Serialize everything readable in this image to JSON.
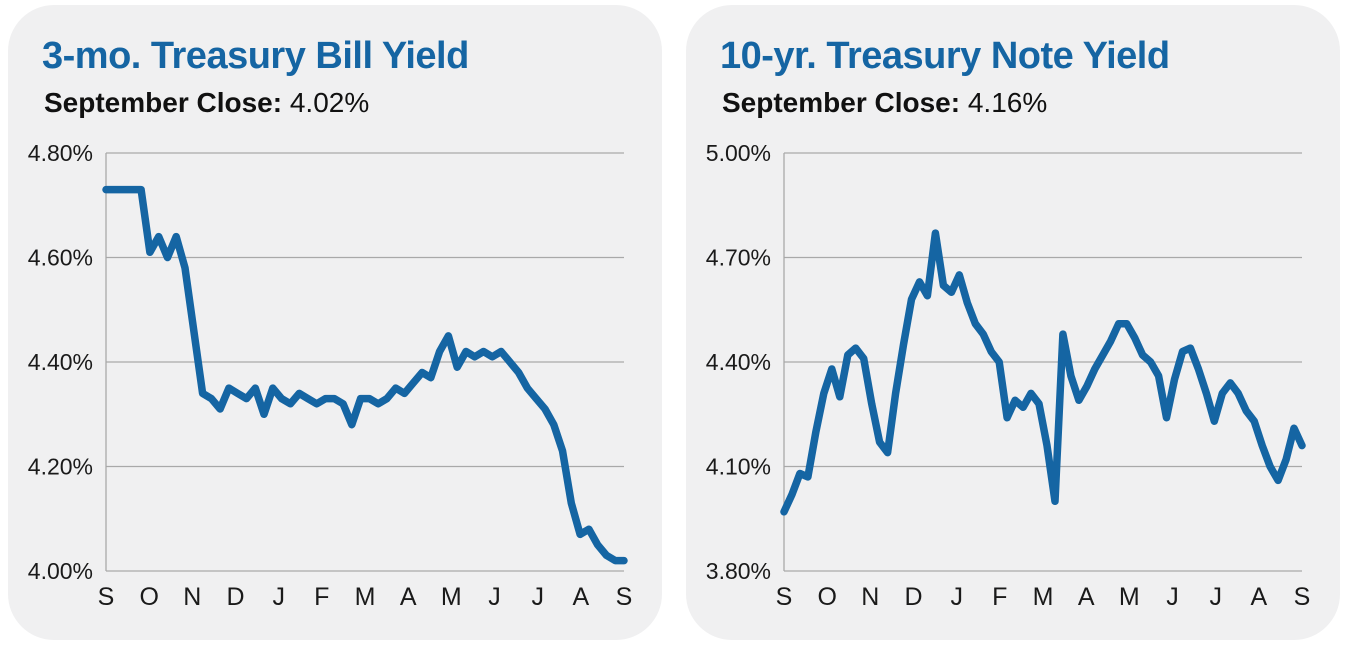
{
  "colors": {
    "accent_blue": "#1565a3",
    "card_background": "#f0f0f1",
    "gridline": "#a9a9a9",
    "axis_text": "#1a1a1a"
  },
  "cards": [
    {
      "title": "3-mo. Treasury Bill Yield",
      "subtitle_label": "September Close:",
      "subtitle_value": "4.02%"
    },
    {
      "title": "10-yr. Treasury Note Yield",
      "subtitle_label": "September Close:",
      "subtitle_value": "4.16%"
    }
  ],
  "chart_data": [
    {
      "type": "line",
      "title": "3-mo. Treasury Bill Yield",
      "subtitle": "September Close: 4.02%",
      "xlabel": "",
      "ylabel": "",
      "x_tick_labels": [
        "S",
        "O",
        "N",
        "D",
        "J",
        "F",
        "M",
        "A",
        "M",
        "J",
        "J",
        "A",
        "S"
      ],
      "y_ticks": [
        4.8,
        4.6,
        4.4,
        4.2,
        4.0
      ],
      "y_tick_labels": [
        "4.80%",
        "4.60%",
        "4.40%",
        "4.20%",
        "4.00%"
      ],
      "ylim": [
        4.0,
        4.8
      ],
      "grid": true,
      "legend": "none",
      "line_color": "#1565a3",
      "values": [
        4.73,
        4.73,
        4.73,
        4.73,
        4.73,
        4.61,
        4.64,
        4.6,
        4.64,
        4.58,
        4.46,
        4.34,
        4.33,
        4.31,
        4.35,
        4.34,
        4.33,
        4.35,
        4.3,
        4.35,
        4.33,
        4.32,
        4.34,
        4.33,
        4.32,
        4.33,
        4.33,
        4.32,
        4.28,
        4.33,
        4.33,
        4.32,
        4.33,
        4.35,
        4.34,
        4.36,
        4.38,
        4.37,
        4.42,
        4.45,
        4.39,
        4.42,
        4.41,
        4.42,
        4.41,
        4.42,
        4.4,
        4.38,
        4.35,
        4.33,
        4.31,
        4.28,
        4.23,
        4.13,
        4.07,
        4.08,
        4.05,
        4.03,
        4.02,
        4.02
      ]
    },
    {
      "type": "line",
      "title": "10-yr. Treasury Note Yield",
      "subtitle": "September Close: 4.16%",
      "xlabel": "",
      "ylabel": "",
      "x_tick_labels": [
        "S",
        "O",
        "N",
        "D",
        "J",
        "F",
        "M",
        "A",
        "M",
        "J",
        "J",
        "A",
        "S"
      ],
      "y_ticks": [
        5.0,
        4.7,
        4.4,
        4.1,
        3.8
      ],
      "y_tick_labels": [
        "5.00%",
        "4.70%",
        "4.40%",
        "4.10%",
        "3.80%"
      ],
      "ylim": [
        3.8,
        5.0
      ],
      "grid": true,
      "legend": "none",
      "line_color": "#1565a3",
      "values": [
        3.97,
        4.02,
        4.08,
        4.07,
        4.2,
        4.31,
        4.38,
        4.3,
        4.42,
        4.44,
        4.41,
        4.28,
        4.17,
        4.14,
        4.31,
        4.45,
        4.58,
        4.63,
        4.59,
        4.77,
        4.62,
        4.6,
        4.65,
        4.57,
        4.51,
        4.48,
        4.43,
        4.4,
        4.24,
        4.29,
        4.27,
        4.31,
        4.28,
        4.16,
        4.0,
        4.48,
        4.36,
        4.29,
        4.33,
        4.38,
        4.42,
        4.46,
        4.51,
        4.51,
        4.47,
        4.42,
        4.4,
        4.36,
        4.24,
        4.35,
        4.43,
        4.44,
        4.38,
        4.31,
        4.23,
        4.31,
        4.34,
        4.31,
        4.26,
        4.23,
        4.16,
        4.1,
        4.06,
        4.12,
        4.21,
        4.16
      ]
    }
  ]
}
